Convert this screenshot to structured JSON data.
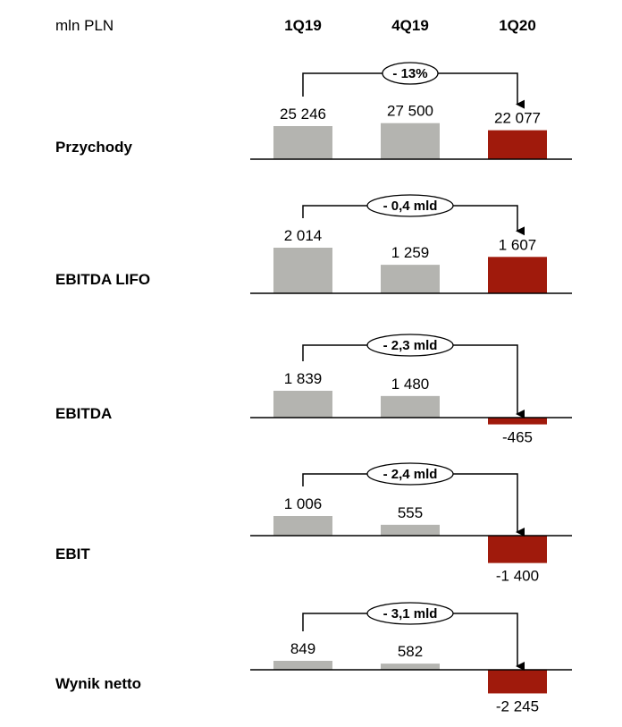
{
  "chart_data": {
    "type": "bar",
    "unit_label": "mln PLN",
    "categories": [
      "1Q19",
      "4Q19",
      "1Q20"
    ],
    "colors": {
      "previous": "#b4b4b0",
      "current": "#a01a0c",
      "axis": "#000000"
    },
    "panels": [
      {
        "name": "Przychody",
        "values": [
          25246,
          27500,
          22077
        ],
        "labels": [
          "25 246",
          "27 500",
          "22 077"
        ],
        "change": "- 13%"
      },
      {
        "name": "EBITDA LIFO",
        "values": [
          2014,
          1259,
          1607
        ],
        "labels": [
          "2 014",
          "1 259",
          "1 607"
        ],
        "change": "- 0,4 mld"
      },
      {
        "name": "EBITDA",
        "values": [
          1839,
          1480,
          -465
        ],
        "labels": [
          "1 839",
          "1 480",
          "-465"
        ],
        "change": "- 2,3 mld"
      },
      {
        "name": "EBIT",
        "values": [
          1006,
          555,
          -1400
        ],
        "labels": [
          "1 006",
          "555",
          "-1 400"
        ],
        "change": "- 2,4 mld"
      },
      {
        "name": "Wynik netto",
        "values": [
          849,
          582,
          -2245
        ],
        "labels": [
          "849",
          "582",
          "-2 245"
        ],
        "change": "- 3,1 mld"
      }
    ]
  }
}
